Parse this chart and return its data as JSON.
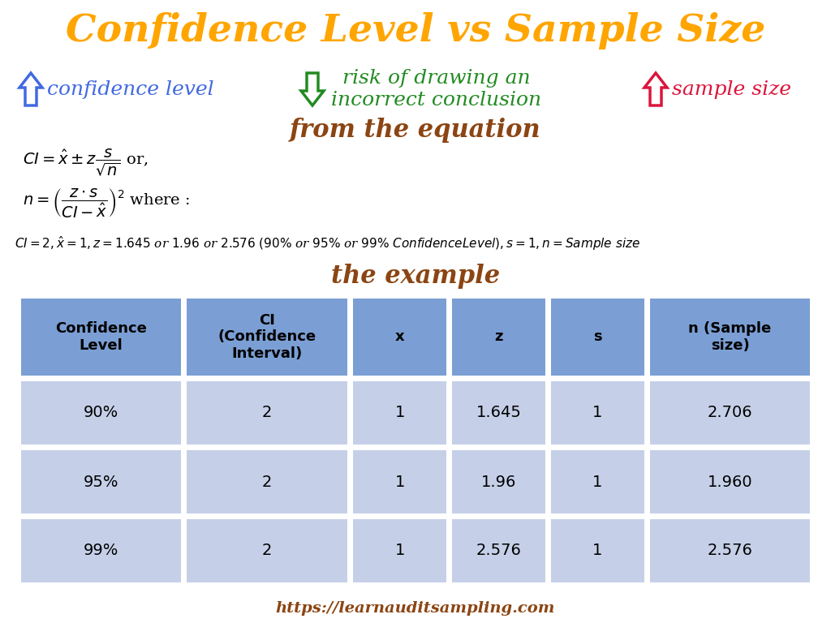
{
  "title": "Confidence Level vs Sample Size",
  "title_color": "#FFA500",
  "title_fontsize": 34,
  "subtitle_from_equation": "from the equation",
  "subtitle_the_example": "the example",
  "subtitle_color": "#8B4513",
  "subtitle_fontsize": 22,
  "blue_color": "#4169E1",
  "green_color": "#228B22",
  "red_color": "#DC143C",
  "eq_color": "#000000",
  "table_header_bg": "#7B9FD4",
  "table_row_bg": "#C5D0E8",
  "table_headers": [
    "Confidence\nLevel",
    "CI\n(Confidence\nInterval)",
    "x",
    "z",
    "s",
    "n (Sample\nsize)"
  ],
  "table_data": [
    [
      "90%",
      "2",
      "1",
      "1.645",
      "1",
      "2.706"
    ],
    [
      "95%",
      "2",
      "1",
      "1.96",
      "1",
      "1.960"
    ],
    [
      "99%",
      "2",
      "1",
      "2.576",
      "1",
      "2.576"
    ]
  ],
  "footer_url": "https://learnauditsampling.com",
  "footer_color": "#8B4513",
  "footer_fontsize": 14,
  "bg_color": "#FFFFFF",
  "col_widths": [
    1.85,
    1.85,
    1.1,
    1.1,
    1.1,
    1.85
  ]
}
